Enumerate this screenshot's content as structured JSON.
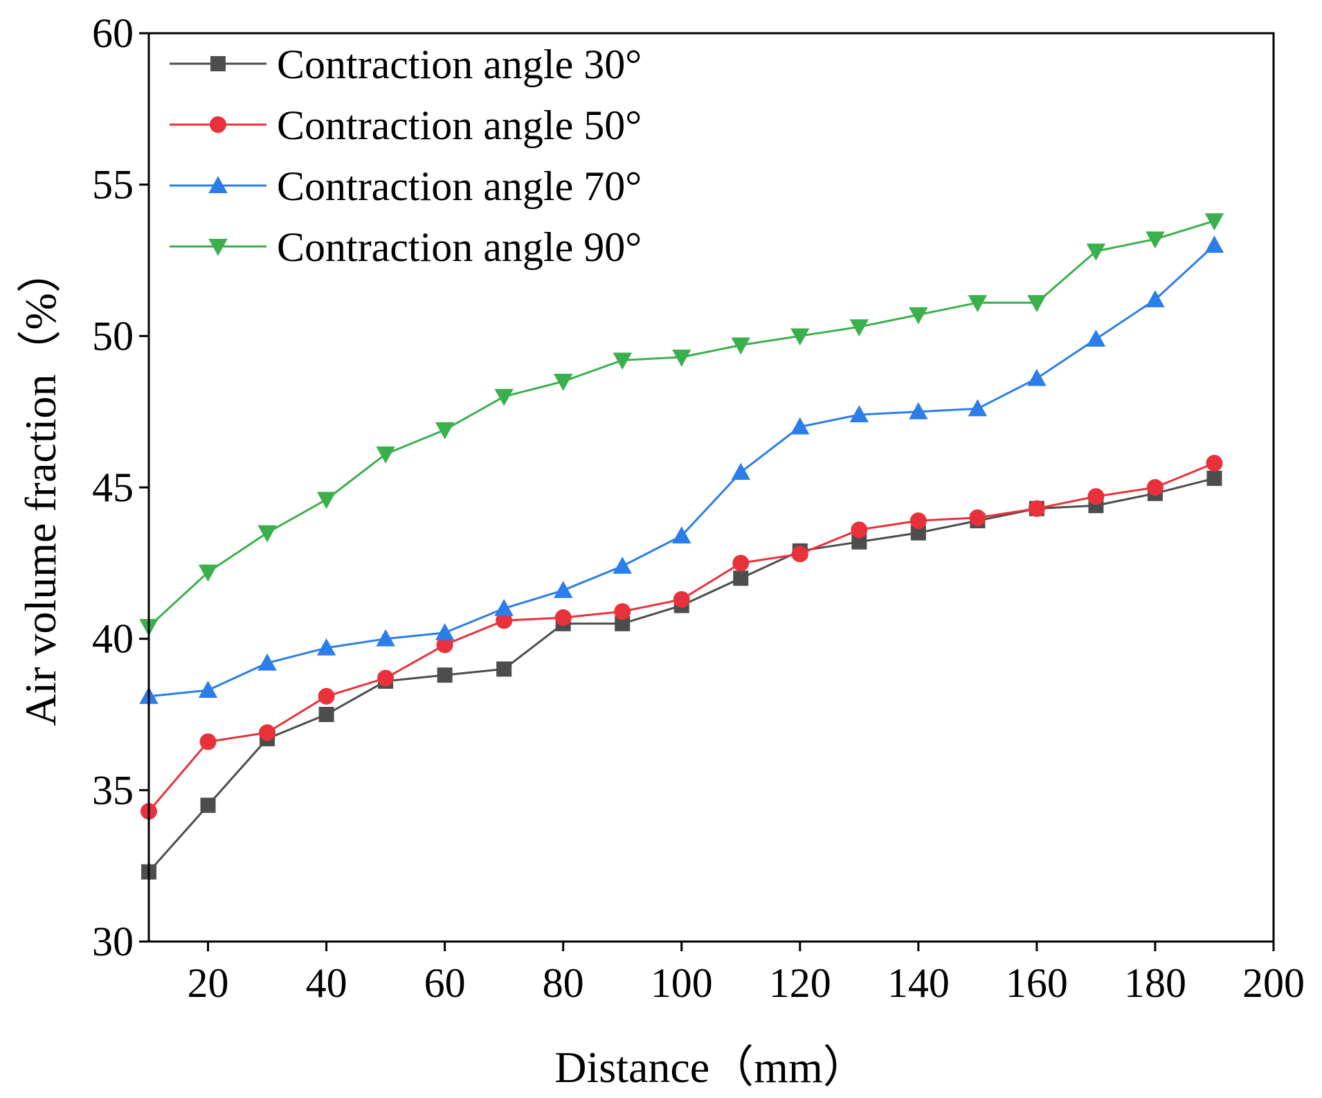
{
  "chart_data": {
    "type": "line",
    "title": "",
    "xlabel": "Distance（mm）",
    "ylabel": "Air volume fraction（%）",
    "xlim": [
      10,
      200
    ],
    "ylim": [
      30,
      60
    ],
    "xticks": [
      20,
      40,
      60,
      80,
      100,
      120,
      140,
      160,
      180,
      200
    ],
    "yticks": [
      30,
      35,
      40,
      45,
      50,
      55,
      60
    ],
    "legend_position": "top-left",
    "x": [
      10,
      20,
      30,
      40,
      50,
      60,
      70,
      80,
      90,
      100,
      110,
      120,
      130,
      140,
      150,
      160,
      170,
      180,
      190
    ],
    "series": [
      {
        "name": "Contraction angle 30°",
        "color": "#4d4d4d",
        "marker": "square",
        "values": [
          32.3,
          34.5,
          36.7,
          37.5,
          38.6,
          38.8,
          39.0,
          40.5,
          40.5,
          41.1,
          42.0,
          42.9,
          43.2,
          43.5,
          43.9,
          44.3,
          44.4,
          44.8,
          45.3
        ]
      },
      {
        "name": "Contraction angle 50°",
        "color": "#e8313a",
        "marker": "circle",
        "values": [
          34.3,
          36.6,
          36.9,
          38.1,
          38.7,
          39.8,
          40.6,
          40.7,
          40.9,
          41.3,
          42.5,
          42.8,
          43.6,
          43.9,
          44.0,
          44.3,
          44.7,
          45.0,
          45.8
        ]
      },
      {
        "name": "Contraction angle 70°",
        "color": "#2b7de9",
        "marker": "triangle-up",
        "values": [
          38.1,
          38.3,
          39.2,
          39.7,
          40.0,
          40.2,
          41.0,
          41.6,
          42.4,
          43.4,
          45.5,
          47.0,
          47.4,
          47.5,
          47.6,
          48.6,
          49.9,
          51.2,
          53.0
        ]
      },
      {
        "name": "Contraction angle 90°",
        "color": "#3ab04c",
        "marker": "triangle-down",
        "values": [
          40.4,
          42.2,
          43.5,
          44.6,
          46.1,
          46.9,
          48.0,
          48.5,
          49.2,
          49.3,
          49.7,
          50.0,
          50.3,
          50.7,
          51.1,
          51.1,
          52.8,
          53.2,
          53.8
        ]
      }
    ]
  }
}
